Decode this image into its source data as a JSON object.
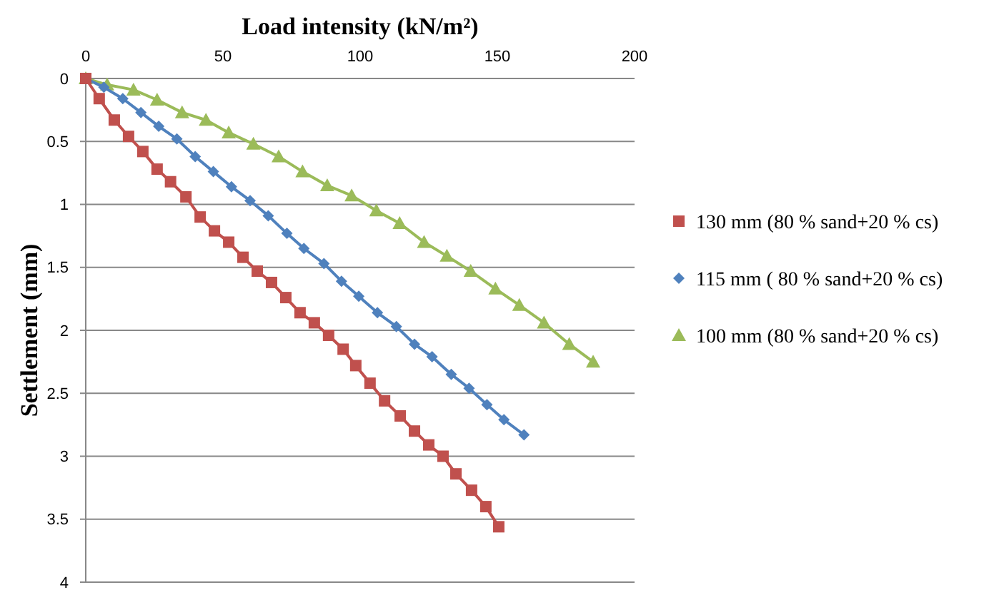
{
  "chart_data": {
    "type": "line",
    "xlabel": "Load intensity  (kN/m²)",
    "ylabel": "Settlement (mm)",
    "xlim": [
      0,
      200
    ],
    "xticks": [
      0,
      50,
      100,
      150,
      200
    ],
    "ylim": [
      4,
      0
    ],
    "yticks": [
      0,
      0.5,
      1,
      1.5,
      2,
      2.5,
      3,
      3.5,
      4
    ],
    "grid": "y",
    "legend": "right",
    "series": [
      {
        "name": "130 mm (80 % sand+20 % cs)",
        "color": "#c0504d",
        "marker": "square",
        "x": [
          0,
          4.9,
          10.4,
          15.6,
          20.8,
          26,
          30.9,
          36.5,
          41.7,
          46.9,
          52.1,
          57.3,
          62.5,
          67.7,
          72.9,
          78.1,
          83.3,
          88.5,
          93.8,
          98.4,
          103.6,
          108.9,
          114.6,
          119.8,
          125,
          130.2,
          134.9,
          140.6,
          145.8,
          150.5
        ],
        "values": [
          0,
          0.16,
          0.33,
          0.46,
          0.58,
          0.72,
          0.82,
          0.94,
          1.1,
          1.21,
          1.3,
          1.42,
          1.53,
          1.62,
          1.74,
          1.86,
          1.94,
          2.04,
          2.15,
          2.28,
          2.42,
          2.56,
          2.68,
          2.8,
          2.91,
          3.0,
          3.14,
          3.27,
          3.4,
          3.56
        ]
      },
      {
        "name": "115 mm ( 80 % sand+20 % cs)",
        "color": "#4f81bd",
        "marker": "diamond",
        "x": [
          0,
          6.6,
          13.5,
          20.1,
          26.6,
          33.2,
          39.9,
          46.5,
          53.1,
          59.9,
          66.5,
          73.3,
          79.5,
          86.8,
          93.2,
          99.5,
          106.3,
          113.2,
          119.8,
          126.2,
          133.2,
          139.7,
          146.2,
          152.4,
          159.7
        ],
        "values": [
          0,
          0.07,
          0.16,
          0.27,
          0.38,
          0.48,
          0.62,
          0.74,
          0.86,
          0.97,
          1.09,
          1.23,
          1.35,
          1.47,
          1.61,
          1.73,
          1.86,
          1.97,
          2.11,
          2.21,
          2.35,
          2.46,
          2.59,
          2.71,
          2.83
        ]
      },
      {
        "name": "100 mm (80 % sand+20 % cs)",
        "color": "#9bbb59",
        "marker": "triangle",
        "x": [
          0,
          7.8,
          17.4,
          26,
          35.1,
          43.8,
          52.1,
          61.1,
          70.3,
          79,
          88,
          96.9,
          105.9,
          114.4,
          123.3,
          131.6,
          140.3,
          149.3,
          158,
          167,
          176.2,
          184.9
        ],
        "values": [
          0,
          0.05,
          0.09,
          0.17,
          0.27,
          0.33,
          0.43,
          0.52,
          0.62,
          0.74,
          0.85,
          0.93,
          1.05,
          1.15,
          1.3,
          1.41,
          1.53,
          1.67,
          1.8,
          1.94,
          2.11,
          2.25
        ]
      }
    ]
  }
}
